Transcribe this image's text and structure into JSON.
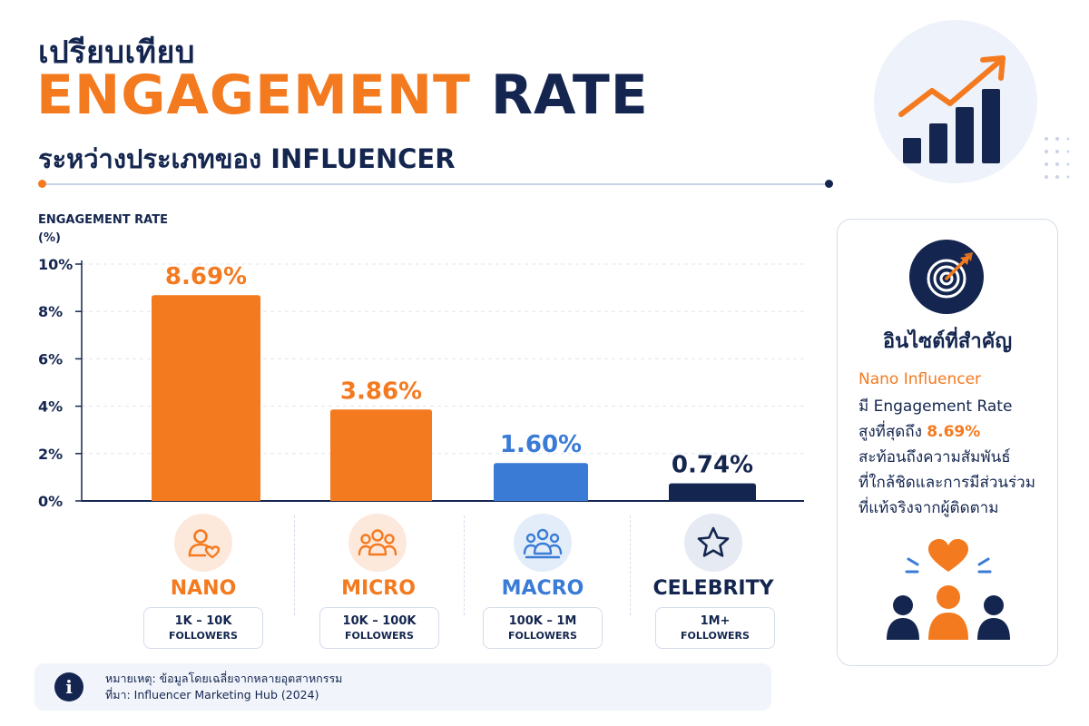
{
  "header": {
    "title_line1": "เปรียบเทียบ",
    "title_highlight": "ENGAGEMENT",
    "title_rest": "RATE",
    "subtitle": "ระหว่างประเภทของ INFLUENCER",
    "decoration_icon": "growth-chart-arrow-icon"
  },
  "chart_data": {
    "type": "bar",
    "ylabel": "ENGAGEMENT RATE\n(%)",
    "ylabel_line1": "ENGAGEMENT RATE",
    "ylabel_line2": "(%)",
    "ylim": [
      0,
      10
    ],
    "yticks": [
      0,
      2,
      4,
      6,
      8,
      10
    ],
    "ytick_labels": [
      "0%",
      "2%",
      "4%",
      "6%",
      "8%",
      "10%"
    ],
    "grid": true,
    "categories": [
      "NANO",
      "MICRO",
      "MACRO",
      "CELEBRITY"
    ],
    "values": [
      8.69,
      3.86,
      1.6,
      0.74
    ],
    "value_labels": [
      "8.69%",
      "3.86%",
      "1.60%",
      "0.74%"
    ],
    "colors": [
      "#f47a1f",
      "#f47a1f",
      "#3a7bd5",
      "#14264f"
    ]
  },
  "categories": [
    {
      "name": "NANO",
      "range": "1K – 10K",
      "followers": "FOLLOWERS",
      "icon": "person-heart-icon",
      "color": "#f47a1f",
      "icon_bg": "#fde9dc"
    },
    {
      "name": "MICRO",
      "range": "10K – 100K",
      "followers": "FOLLOWERS",
      "icon": "group-three-icon",
      "color": "#f47a1f",
      "icon_bg": "#fde9dc"
    },
    {
      "name": "MACRO",
      "range": "100K – 1M",
      "followers": "FOLLOWERS",
      "icon": "group-crowd-icon",
      "color": "#3a7bd5",
      "icon_bg": "#e3edfa"
    },
    {
      "name": "CELEBRITY",
      "range": "1M+",
      "followers": "FOLLOWERS",
      "icon": "star-icon",
      "color": "#14264f",
      "icon_bg": "#e6eaf2"
    }
  ],
  "note": {
    "icon": "info-icon",
    "line1": "หมายเหตุ: ข้อมูลโดยเฉลี่ยจากหลายอุตสาหกรรม",
    "line2": "ที่มา: Influencer Marketing Hub (2024)"
  },
  "insight": {
    "icon": "target-arrow-icon",
    "title": "อินไซต์ที่สำคัญ",
    "line1": "Nano Influencer",
    "line2": "มี Engagement Rate",
    "line3_prefix": "สูงที่สุดถึง ",
    "line3_value": "8.69%",
    "line4": "สะท้อนถึงความสัมพันธ์",
    "line5": "ที่ใกล้ชิดและการมีส่วนร่วม",
    "line6": "ที่แท้จริงจากผู้ติดตาม",
    "bottom_icon": "community-heart-icon"
  },
  "colors": {
    "orange": "#f47a1f",
    "navy": "#14264f",
    "blue": "#3a7bd5"
  }
}
